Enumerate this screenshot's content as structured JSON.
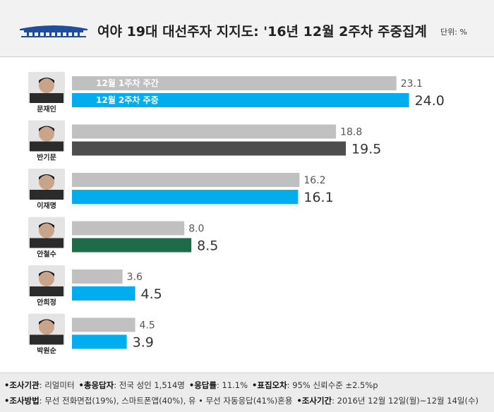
{
  "header": {
    "title": "여야 19대 대선주자 지지도: '16년 12월 2주차 주중집계",
    "unit": "단위: %"
  },
  "chart_data": {
    "type": "bar",
    "orientation": "horizontal",
    "categories": [
      "문재인",
      "반기문",
      "이재명",
      "안철수",
      "안희정",
      "박원순"
    ],
    "series": [
      {
        "name": "12월 1주차 주간",
        "values": [
          23.1,
          18.8,
          16.2,
          8.0,
          3.6,
          4.5
        ],
        "color": "#c0c0c0"
      },
      {
        "name": "12월 2주차 주중",
        "values": [
          24.0,
          19.5,
          16.1,
          8.5,
          4.5,
          3.9
        ],
        "colors": [
          "#00aeef",
          "#4d4d4d",
          "#00aeef",
          "#1e6b4a",
          "#00aeef",
          "#00aeef"
        ]
      }
    ],
    "legend_placement": "inside-first-bar",
    "grid": false
  },
  "footer": {
    "line1": [
      {
        "label": "•조사기관",
        "value": ": 리얼미터"
      },
      {
        "label": "•총응답자",
        "value": ": 전국 성인 1,514명"
      },
      {
        "label": "•응답률",
        "value": ": 11.1%"
      },
      {
        "label": "•표집오차",
        "value": ": 95% 신뢰수준 ±2.5%p"
      }
    ],
    "line2": [
      {
        "label": "•조사방법",
        "value": ": 무선 전화면접(19%), 스마트폰앱(40%), 유 • 무선 자동응답(41%)혼용"
      },
      {
        "label": "•조사기간",
        "value": ": 2016년 12월 12일(월)~12월 14일(수)"
      }
    ]
  },
  "colors": {
    "previous_week": "#c0c0c0",
    "democratic": "#00aeef",
    "independent": "#4d4d4d",
    "peoples_party": "#1e6b4a",
    "header_bg": "#f2f2f2",
    "footer_bg": "#ececec"
  }
}
